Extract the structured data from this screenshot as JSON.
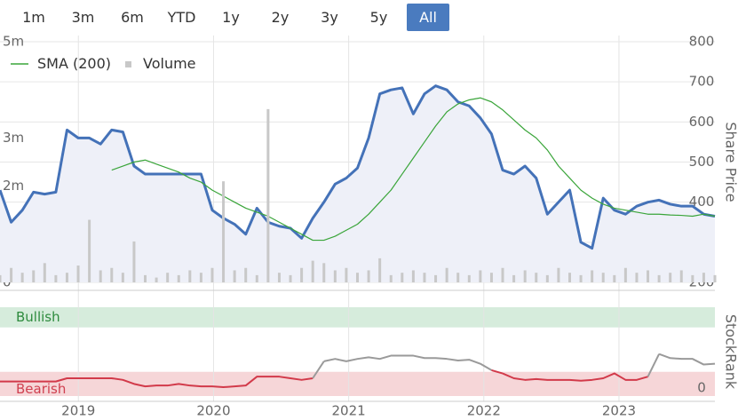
{
  "buttons": [
    {
      "label": "1m"
    },
    {
      "label": "3m"
    },
    {
      "label": "6m"
    },
    {
      "label": "YTD"
    },
    {
      "label": "1y"
    },
    {
      "label": "2y"
    },
    {
      "label": "3y"
    },
    {
      "label": "5y"
    },
    {
      "label": "All",
      "selected": true
    }
  ],
  "chart_data": [
    {
      "type": "line",
      "y_title": "Share Price",
      "ylim": [
        200,
        800
      ],
      "yticks": [
        200,
        300,
        400,
        500,
        600,
        700,
        800
      ],
      "y2lim": [
        0,
        5000000
      ],
      "y2ticks": [
        0,
        {
          "value": 2000000,
          "label": "2m"
        },
        {
          "value": 3000000,
          "label": "3m"
        },
        {
          "value": 5000000,
          "label": "5m"
        }
      ],
      "grid": true,
      "series": [
        {
          "color": "#4472b8",
          "fill": "#eef0f8",
          "values": [
            430,
            350,
            380,
            425,
            420,
            425,
            580,
            560,
            560,
            545,
            580,
            575,
            490,
            470,
            470,
            470,
            470,
            470,
            470,
            380,
            360,
            345,
            320,
            385,
            350,
            340,
            335,
            310,
            360,
            400,
            445,
            460,
            485,
            560,
            670,
            680,
            685,
            620,
            670,
            690,
            680,
            650,
            640,
            610,
            570,
            480,
            470,
            490,
            460,
            370,
            400,
            430,
            300,
            285,
            410,
            380,
            370,
            390,
            400,
            405,
            395,
            390,
            390,
            370,
            365
          ]
        },
        {
          "name": "SMA (200)",
          "color": "#3aa53a",
          "values": [
            null,
            null,
            null,
            null,
            null,
            null,
            null,
            null,
            null,
            null,
            480,
            490,
            500,
            505,
            495,
            485,
            475,
            460,
            450,
            430,
            415,
            400,
            385,
            375,
            365,
            350,
            335,
            320,
            305,
            305,
            315,
            330,
            345,
            370,
            400,
            430,
            470,
            510,
            550,
            590,
            625,
            645,
            655,
            660,
            650,
            630,
            605,
            580,
            560,
            530,
            490,
            460,
            430,
            410,
            395,
            385,
            380,
            375,
            370,
            370,
            368,
            367,
            365,
            370,
            365
          ]
        },
        {
          "name": "Volume",
          "type": "bar",
          "axis": "y2",
          "color": "#c8c8c8",
          "values": [
            150000,
            300000,
            200000,
            250000,
            400000,
            150000,
            200000,
            350000,
            1300000,
            250000,
            300000,
            200000,
            850000,
            150000,
            100000,
            200000,
            150000,
            250000,
            200000,
            300000,
            2100000,
            250000,
            300000,
            150000,
            3600000,
            200000,
            150000,
            300000,
            450000,
            400000,
            250000,
            300000,
            200000,
            250000,
            500000,
            150000,
            200000,
            250000,
            200000,
            150000,
            300000,
            200000,
            150000,
            250000,
            200000,
            300000,
            150000,
            250000,
            200000,
            150000,
            300000,
            200000,
            150000,
            250000,
            200000,
            150000,
            300000,
            200000,
            250000,
            150000,
            200000,
            250000,
            150000,
            200000,
            150000
          ]
        }
      ]
    },
    {
      "type": "line",
      "y_title": "StockRank",
      "xlim": [
        2018.42,
        2023.71
      ],
      "xticks": [
        2019,
        2020,
        2021,
        2022,
        2023
      ],
      "ylim": [
        -10,
        100
      ],
      "yticks": [
        0
      ],
      "bands": [
        {
          "label": "Bullish",
          "from": 75,
          "to": 100,
          "color": "#d6ecdc",
          "text_color": "#2e8b3e"
        },
        {
          "label": "Bearish",
          "from": -10,
          "to": 20,
          "color": "#f6d6d8",
          "text_color": "#d04050",
          "line_color": "#d23a4a"
        }
      ],
      "series": [
        {
          "color": "#9a9a9a",
          "values": [
            8,
            8,
            8,
            8,
            8,
            8,
            12,
            12,
            12,
            12,
            12,
            10,
            5,
            2,
            3,
            3,
            5,
            3,
            2,
            2,
            1,
            2,
            3,
            14,
            14,
            14,
            12,
            10,
            12,
            33,
            36,
            33,
            36,
            38,
            36,
            40,
            40,
            40,
            37,
            37,
            36,
            34,
            35,
            30,
            22,
            18,
            12,
            10,
            11,
            10,
            10,
            10,
            9,
            10,
            12,
            18,
            10,
            10,
            14,
            42,
            37,
            36,
            36,
            29,
            30
          ]
        }
      ]
    }
  ]
}
